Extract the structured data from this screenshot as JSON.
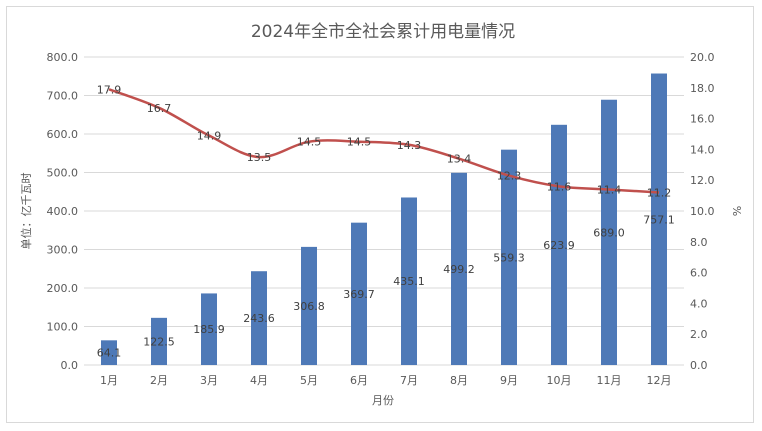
{
  "chart_data": {
    "type": "bar+line",
    "title": "2024年全市全社会累计用电量情况",
    "xlabel": "月份",
    "ylabel": "单位：亿千瓦时",
    "y2label": "%",
    "categories": [
      "1月",
      "2月",
      "3月",
      "4月",
      "5月",
      "6月",
      "7月",
      "8月",
      "9月",
      "10月",
      "11月",
      "12月"
    ],
    "series": [
      {
        "type": "bar",
        "axis": "left",
        "values": [
          64.1,
          122.5,
          185.9,
          243.6,
          306.8,
          369.7,
          435.1,
          499.2,
          559.3,
          623.9,
          689.0,
          757.1
        ],
        "labels": [
          "64.1",
          "122.5",
          "185.9",
          "243.6",
          "306.8",
          "369.7",
          "435.1",
          "499.2",
          "559.3",
          "623.9",
          "689.0",
          "757.1"
        ],
        "color": "#4e79b7"
      },
      {
        "type": "line",
        "axis": "right",
        "values": [
          17.9,
          16.7,
          14.9,
          13.5,
          14.5,
          14.5,
          14.3,
          13.4,
          12.3,
          11.6,
          11.4,
          11.2
        ],
        "labels": [
          "17.9",
          "16.7",
          "14.9",
          "13.5",
          "14.5",
          "14.5",
          "14.3",
          "13.4",
          "12.3",
          "11.6",
          "11.4",
          "11.2"
        ],
        "color": "#c0504d"
      }
    ],
    "ylim": [
      0,
      800
    ],
    "y2lim": [
      0,
      20
    ],
    "yticks": [
      "0.0",
      "100.0",
      "200.0",
      "300.0",
      "400.0",
      "500.0",
      "600.0",
      "700.0",
      "800.0"
    ],
    "y2ticks": [
      "0.0",
      "2.0",
      "4.0",
      "6.0",
      "8.0",
      "10.0",
      "12.0",
      "14.0",
      "16.0",
      "18.0",
      "20.0"
    ],
    "grid": true,
    "gridColor": "#d9d9d9",
    "legend": "none"
  }
}
